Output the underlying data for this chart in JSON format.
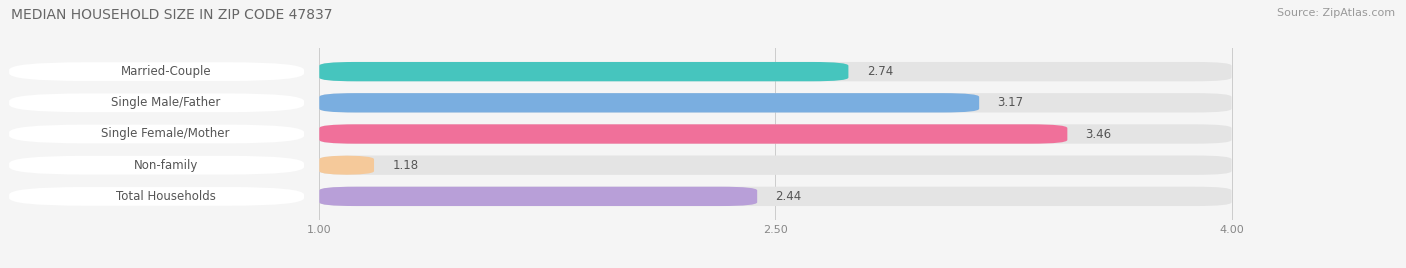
{
  "title": "MEDIAN HOUSEHOLD SIZE IN ZIP CODE 47837",
  "source": "Source: ZipAtlas.com",
  "categories": [
    "Married-Couple",
    "Single Male/Father",
    "Single Female/Mother",
    "Non-family",
    "Total Households"
  ],
  "values": [
    2.74,
    3.17,
    3.46,
    1.18,
    2.44
  ],
  "bar_colors": [
    "#46c5be",
    "#7aaee0",
    "#f0709a",
    "#f5c99a",
    "#b89fd8"
  ],
  "xlim_data": [
    0.0,
    4.0
  ],
  "xticks": [
    1.0,
    2.5,
    4.0
  ],
  "data_min": 1.0,
  "data_max": 4.0,
  "background_color": "#f5f5f5",
  "bar_background_color": "#e4e4e4",
  "label_bg_color": "#ffffff",
  "label_text_color": "#555555",
  "value_text_color": "#555555",
  "title_color": "#666666",
  "source_color": "#999999",
  "title_fontsize": 10,
  "source_fontsize": 8,
  "label_fontsize": 8.5,
  "value_fontsize": 8.5
}
